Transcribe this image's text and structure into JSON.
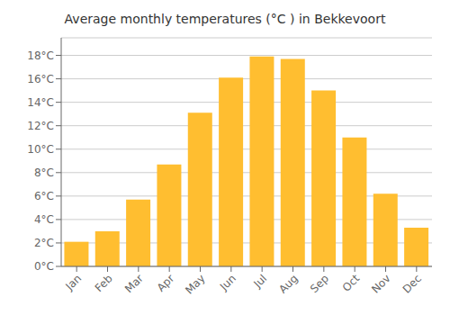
{
  "chart_data": {
    "type": "bar",
    "title": "Average monthly temperatures (°C ) in Bekkevoort",
    "categories": [
      "Jan",
      "Feb",
      "Mar",
      "Apr",
      "May",
      "Jun",
      "Jul",
      "Aug",
      "Sep",
      "Oct",
      "Nov",
      "Dec"
    ],
    "values": [
      2.1,
      3.0,
      5.7,
      8.7,
      13.1,
      16.1,
      17.9,
      17.7,
      15.0,
      11.0,
      6.2,
      3.3
    ],
    "color": "#FFBE30",
    "ylim": [
      0,
      19.5
    ],
    "yticks": [
      {
        "value": 0,
        "label": "0°C"
      },
      {
        "value": 2,
        "label": "2°C"
      },
      {
        "value": 4,
        "label": "4°C"
      },
      {
        "value": 6,
        "label": "6°C"
      },
      {
        "value": 8,
        "label": "8°C"
      },
      {
        "value": 10,
        "label": "10°C"
      },
      {
        "value": 12,
        "label": "12°C"
      },
      {
        "value": 14,
        "label": "14°C"
      },
      {
        "value": 16,
        "label": "16°C"
      },
      {
        "value": 18,
        "label": "18°C"
      }
    ],
    "grid": true
  }
}
